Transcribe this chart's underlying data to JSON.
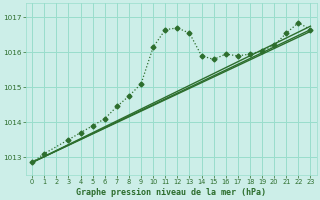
{
  "background_color": "#cceee8",
  "grid_color": "#99ddcc",
  "line_color": "#2d6e2d",
  "title": "Graphe pression niveau de la mer (hPa)",
  "ylim": [
    1012.5,
    1017.4
  ],
  "xlim": [
    -0.5,
    23.5
  ],
  "yticks": [
    1013,
    1014,
    1015,
    1016,
    1017
  ],
  "xticks": [
    0,
    1,
    2,
    3,
    4,
    5,
    6,
    7,
    8,
    9,
    10,
    11,
    12,
    13,
    14,
    15,
    16,
    17,
    18,
    19,
    20,
    21,
    22,
    23
  ],
  "series_main": {
    "x": [
      0,
      1,
      3,
      4,
      5,
      6,
      7,
      8,
      9,
      10,
      11,
      12,
      13,
      14,
      15,
      16,
      17,
      18,
      19,
      20,
      21,
      22,
      23
    ],
    "y": [
      1012.85,
      1013.1,
      1013.5,
      1013.7,
      1013.9,
      1014.1,
      1014.45,
      1014.75,
      1015.1,
      1016.15,
      1016.65,
      1016.7,
      1016.55,
      1015.9,
      1015.8,
      1015.95,
      1015.9,
      1015.95,
      1016.05,
      1016.2,
      1016.55,
      1016.85,
      1016.65
    ]
  },
  "series_lines": [
    {
      "x": [
        0,
        23
      ],
      "y": [
        1012.85,
        1016.6
      ]
    },
    {
      "x": [
        0,
        23
      ],
      "y": [
        1012.85,
        1016.65
      ]
    },
    {
      "x": [
        0,
        23
      ],
      "y": [
        1012.85,
        1016.75
      ]
    }
  ]
}
